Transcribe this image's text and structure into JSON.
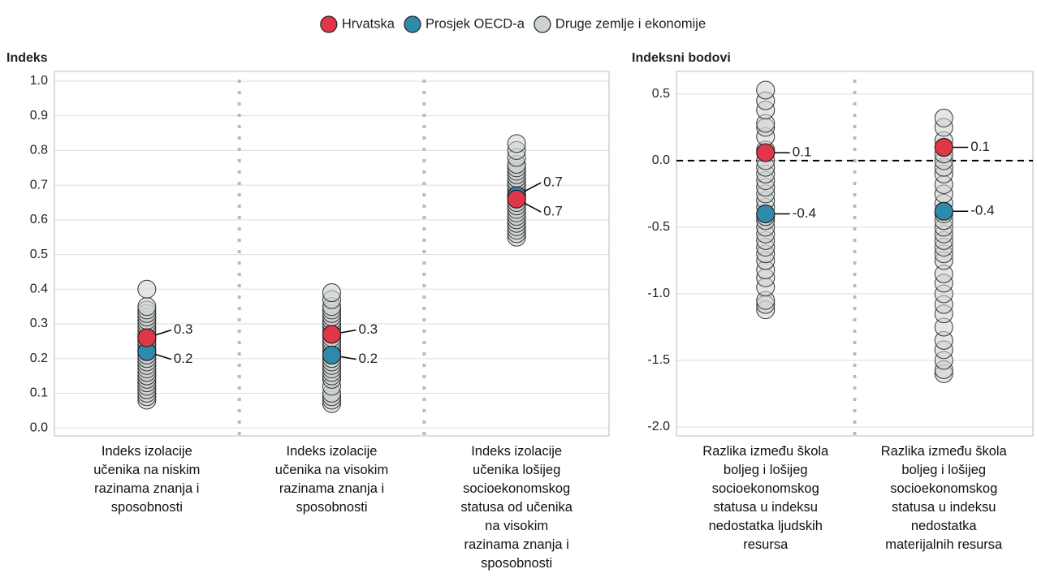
{
  "chart_data": [
    {
      "type": "dot",
      "ylabel": "Indeks",
      "legend": "top",
      "categories": [
        "Indeks izolacije učenika na niskim razinama znanja i sposobnosti",
        "Indeks izolacije učenika na visokim razinama znanja i sposobnosti",
        "Indeks izolacije učenika lošijeg socioekonomskog statusa od učenika na visokim razinama znanja i sposobnosti"
      ],
      "ylim": [
        -0.023,
        1.028
      ],
      "yticks": [
        {
          "value": 0,
          "label": "0.0"
        },
        0.1,
        0.2,
        0.3,
        0.4,
        0.5,
        0.6,
        0.7,
        0.8,
        0.9,
        {
          "value": 1,
          "label": "1.0"
        }
      ],
      "grid": true,
      "series": [
        {
          "name": "Druge zemlje i ekonomije",
          "color": "#cdd2d2",
          "values": [
            [
              0.08,
              0.09,
              0.1,
              0.11,
              0.12,
              0.13,
              0.14,
              0.15,
              0.15,
              0.16,
              0.17,
              0.18,
              0.19,
              0.2,
              0.21,
              0.22,
              0.23,
              0.24,
              0.25,
              0.26,
              0.27,
              0.28,
              0.29,
              0.3,
              0.31,
              0.32,
              0.33,
              0.34,
              0.35,
              0.4
            ],
            [
              0.07,
              0.08,
              0.09,
              0.1,
              0.12,
              0.14,
              0.15,
              0.16,
              0.17,
              0.18,
              0.19,
              0.2,
              0.21,
              0.22,
              0.23,
              0.24,
              0.25,
              0.26,
              0.27,
              0.28,
              0.29,
              0.3,
              0.31,
              0.32,
              0.33,
              0.34,
              0.35,
              0.37,
              0.39
            ],
            [
              0.55,
              0.56,
              0.57,
              0.58,
              0.59,
              0.6,
              0.61,
              0.62,
              0.63,
              0.64,
              0.65,
              0.66,
              0.67,
              0.68,
              0.69,
              0.7,
              0.71,
              0.72,
              0.73,
              0.74,
              0.75,
              0.76,
              0.78,
              0.8,
              0.82
            ]
          ]
        },
        {
          "name": "Prosjek OECD-a",
          "color": "#2e8bab",
          "values": [
            0.22,
            0.21,
            0.67
          ],
          "value_labels": [
            "0.2",
            "0.2",
            "0.7"
          ]
        },
        {
          "name": "Hrvatska",
          "color": "#e0364a",
          "values": [
            0.26,
            0.27,
            0.66
          ],
          "value_labels": [
            "0.3",
            "0.3",
            "0.7"
          ]
        }
      ]
    },
    {
      "type": "dot",
      "ylabel": "Indeksni bodovi",
      "categories": [
        "Razlika između škola boljeg i lošijeg socioekonomskog statusa u indeksu nedostatka ljudskih resursa",
        "Razlika između škola boljeg i lošijeg socioekonomskog statusa u indeksu nedostatka materijalnih resursa"
      ],
      "ylim": [
        -2.067,
        0.67
      ],
      "yticks": [
        {
          "value": -2,
          "label": "-2.0"
        },
        -1.5,
        {
          "value": -1,
          "label": "-1.0"
        },
        -0.5,
        {
          "value": 0,
          "label": "0.0"
        },
        0.5
      ],
      "grid": true,
      "refline": 0,
      "series": [
        {
          "color": "#cdd2d2",
          "values": [
            [
              -1.12,
              -1.08,
              -1.05,
              -0.95,
              -0.88,
              -0.82,
              -0.75,
              -0.7,
              -0.65,
              -0.6,
              -0.55,
              -0.5,
              -0.45,
              -0.42,
              -0.35,
              -0.3,
              -0.25,
              -0.2,
              -0.15,
              -0.1,
              -0.05,
              0.0,
              0.08,
              0.18,
              0.25,
              0.28,
              0.38,
              0.45,
              0.53
            ],
            [
              -1.6,
              -1.57,
              -1.5,
              -1.42,
              -1.35,
              -1.25,
              -1.15,
              -1.08,
              -1.0,
              -0.92,
              -0.85,
              -0.75,
              -0.7,
              -0.65,
              -0.6,
              -0.55,
              -0.5,
              -0.45,
              -0.4,
              -0.32,
              -0.25,
              -0.18,
              -0.1,
              -0.05,
              0.0,
              0.05,
              0.15,
              0.25,
              0.32
            ]
          ]
        },
        {
          "color": "#2e8bab",
          "values": [
            -0.4,
            -0.38
          ],
          "value_labels": [
            "-0.4",
            "-0.4"
          ]
        },
        {
          "color": "#e0364a",
          "values": [
            0.06,
            0.1
          ],
          "value_labels": [
            "0.1",
            "0.1"
          ]
        }
      ]
    }
  ]
}
